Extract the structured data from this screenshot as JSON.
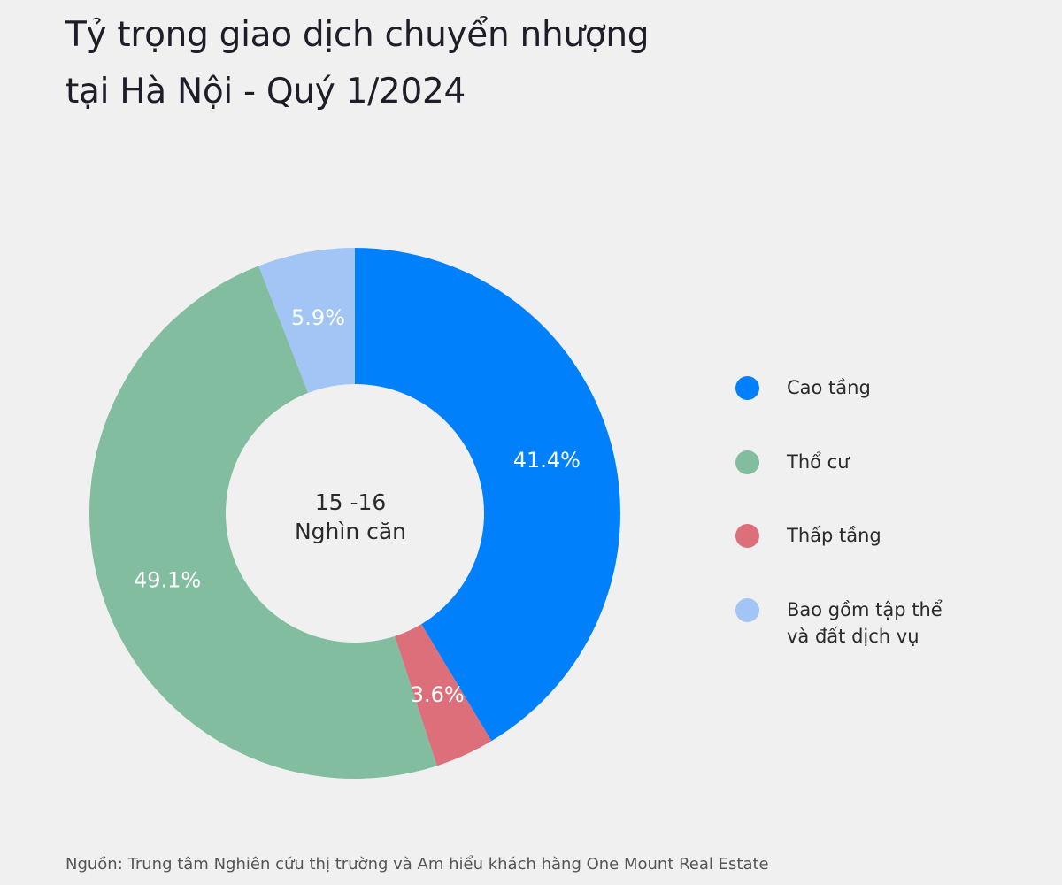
{
  "chart_data": {
    "type": "pie",
    "title": [
      "Tỷ trọng giao dịch chuyển nhượng",
      "tại Hà Nội - Quý 1/2024"
    ],
    "center_label": [
      "15 -16",
      "Nghìn căn"
    ],
    "donut": true,
    "slices": [
      {
        "name": "Cao tầng",
        "value": 41.4,
        "label": "41.4%",
        "color": "#0080fa"
      },
      {
        "name": "Thấp tầng",
        "value": 3.6,
        "label": "3.6%",
        "color": "#dc6f79"
      },
      {
        "name": "Thổ cư",
        "value": 49.1,
        "label": "49.1%",
        "color": "#82bda0"
      },
      {
        "name": "Bao gồm tập thể và đất dịch vụ",
        "value": 5.9,
        "label": "5.9%",
        "color": "#a2c5f6"
      }
    ],
    "legend": {
      "placement": "right",
      "items": [
        {
          "label": "Cao tầng",
          "color": "#0080fa"
        },
        {
          "label": "Thổ cư",
          "color": "#82bda0"
        },
        {
          "label": "Thấp tầng",
          "color": "#dc6f79"
        },
        {
          "label_lines": [
            "Bao gồm tập thể",
            "và đất dịch vụ"
          ],
          "color": "#a2c5f6"
        }
      ]
    }
  },
  "footer": "Nguồn: Trung tâm Nghiên cứu thị trường và Am hiểu khách hàng One Mount Real Estate"
}
